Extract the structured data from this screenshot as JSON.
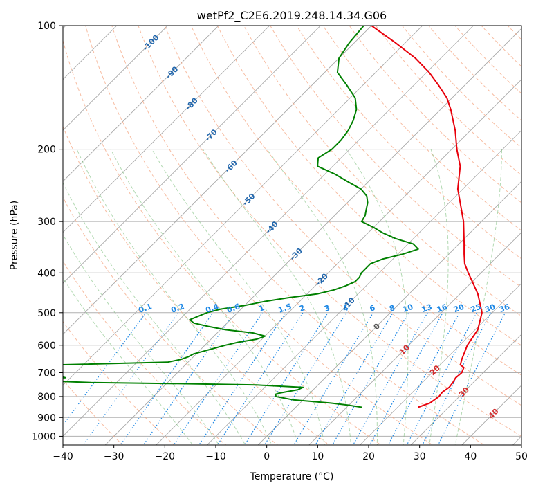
{
  "chart_data": {
    "type": "line",
    "title": "wetPf2_C2E6.2019.248.14.34.G06",
    "xlabel": "Temperature (°C)",
    "ylabel": "Pressure (hPa)",
    "xlim": [
      -40,
      50
    ],
    "ylim": [
      1050,
      100
    ],
    "y_scale": "log",
    "x_ticks": [
      -40,
      -30,
      -20,
      -10,
      0,
      10,
      20,
      30,
      40,
      50
    ],
    "y_ticks": [
      1000,
      900,
      800,
      700,
      600,
      500,
      400,
      300,
      200,
      100
    ],
    "skew": "skew-T",
    "grid": true,
    "colors": {
      "temperature": "#e8000b",
      "dewpoint": "#008000",
      "dry_adiabat": "#f4a582",
      "moist_adiabat": "#7fbf7f",
      "mixing_ratio": "#1e88e5",
      "isotherm": "#999999",
      "neg_isotherm_label": "#2166ac",
      "pos_isotherm_label": "#d32f2f"
    },
    "series": [
      {
        "key": "temperature",
        "pressure": [
          850,
          830,
          800,
          780,
          760,
          740,
          720,
          700,
          690,
          680,
          670,
          650,
          600,
          550,
          500,
          450,
          420,
          400,
          380,
          360,
          340,
          300,
          250,
          220,
          200,
          180,
          160,
          150,
          140,
          130,
          120,
          110,
          100
        ],
        "values": [
          24.0,
          25.5,
          26.0,
          25.8,
          26.2,
          26.0,
          25.6,
          25.8,
          25.5,
          25.2,
          24.0,
          23.2,
          21.5,
          20.5,
          18.0,
          13.5,
          10.0,
          7.5,
          5.0,
          3.0,
          1.0,
          -3.5,
          -11.0,
          -15.0,
          -19.0,
          -23.0,
          -28.0,
          -31.0,
          -35.0,
          -39.5,
          -45.0,
          -52.0,
          -60.0
        ]
      },
      {
        "key": "dewpoint",
        "pressure": [
          850,
          840,
          830,
          815,
          800,
          790,
          785,
          770,
          760,
          750,
          745,
          740,
          730,
          725,
          720,
          715,
          710,
          705,
          700,
          695,
          690,
          680,
          670,
          660,
          650,
          640,
          630,
          620,
          610,
          600,
          590,
          580,
          570,
          560,
          550,
          540,
          530,
          520,
          510,
          500,
          490,
          480,
          470,
          460,
          450,
          440,
          430,
          420,
          410,
          400,
          390,
          380,
          370,
          360,
          350,
          340,
          330,
          320,
          310,
          300,
          290,
          280,
          270,
          260,
          250,
          240,
          230,
          220,
          210,
          200,
          190,
          180,
          170,
          160,
          150,
          140,
          130,
          120,
          110,
          100
        ],
        "values": [
          13.0,
          10.0,
          6.0,
          -2.0,
          -6.0,
          -6.5,
          -6.0,
          -3.0,
          -2.5,
          -12.0,
          -25.0,
          -45.0,
          -58.0,
          -60.0,
          -51.0,
          -52.0,
          -60.0,
          -68.0,
          -72.0,
          -72.0,
          -70.0,
          -65.0,
          -55.0,
          -34.0,
          -32.0,
          -31.0,
          -30.5,
          -29.0,
          -27.5,
          -26.0,
          -24.0,
          -21.0,
          -20.0,
          -23.0,
          -29.0,
          -33.0,
          -36.5,
          -38.0,
          -37.0,
          -36.0,
          -34.0,
          -30.0,
          -27.0,
          -23.0,
          -18.0,
          -15.5,
          -14.0,
          -13.0,
          -13.0,
          -13.5,
          -13.5,
          -13.5,
          -12.0,
          -9.0,
          -7.0,
          -9.0,
          -13.5,
          -17.0,
          -20.0,
          -23.5,
          -24.0,
          -25.0,
          -26.0,
          -27.5,
          -30.0,
          -34.0,
          -38.0,
          -43.0,
          -44.5,
          -43.5,
          -43.5,
          -44.0,
          -45.0,
          -46.5,
          -49.0,
          -53.0,
          -57.5,
          -60.0,
          -61.0,
          -61.5
        ]
      }
    ],
    "isotherm_labels": [
      "-100",
      "-90",
      "-80",
      "-70",
      "-60",
      "-50",
      "-40",
      "-30",
      "-20",
      "-10",
      "0",
      "10",
      "20",
      "30",
      "40"
    ],
    "mixing_ratio_labels": [
      "0.1",
      "0.2",
      "0.4",
      "0.6",
      "1",
      "1.5",
      "2",
      "3",
      "4",
      "6",
      "8",
      "10",
      "13",
      "16",
      "20",
      "25",
      "30",
      "36"
    ]
  }
}
